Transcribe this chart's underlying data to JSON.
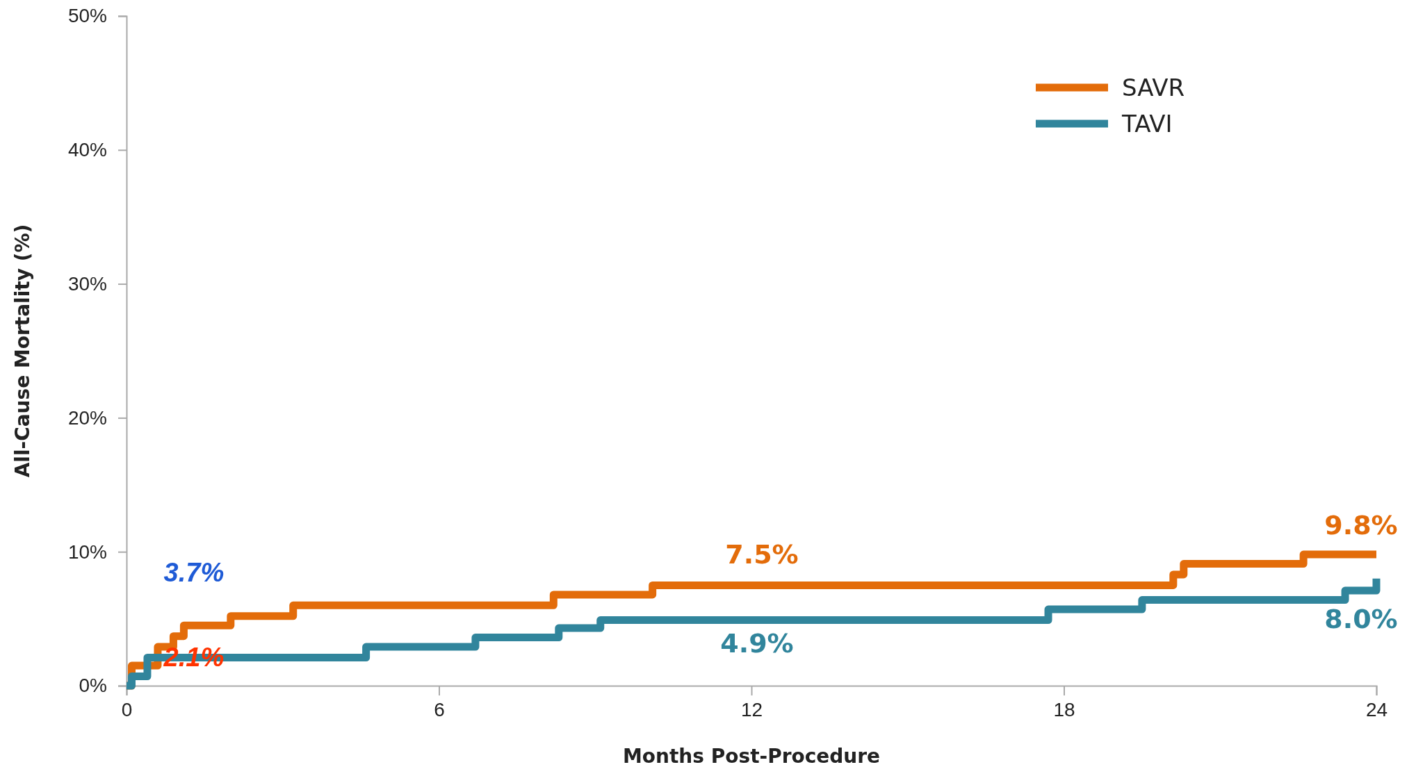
{
  "chart_data": {
    "type": "step",
    "xlabel": "Months Post-Procedure",
    "ylabel": "All-Cause Mortality (%)",
    "xlim": [
      0,
      24
    ],
    "xticks": [
      0,
      6,
      12,
      18,
      24
    ],
    "ylim": [
      0,
      50
    ],
    "yticks": [
      {
        "value": 0,
        "label": "0%"
      },
      {
        "value": 10,
        "label": "10%"
      },
      {
        "value": 20,
        "label": "20%"
      },
      {
        "value": 30,
        "label": "30%"
      },
      {
        "value": 40,
        "label": "40%"
      },
      {
        "value": 50,
        "label": "50%"
      }
    ],
    "grid": false,
    "legend": "top right",
    "marker": "none",
    "line_style": "solid",
    "series": [
      {
        "name": "SAVR",
        "color": "#e36c0a",
        "x": [
          0,
          0.1,
          0.6,
          0.9,
          1.1,
          2.0,
          3.2,
          8.2,
          10.1,
          20.1,
          20.3,
          22.6,
          24
        ],
        "values": [
          0,
          1.5,
          2.9,
          3.7,
          4.5,
          5.2,
          6.0,
          6.8,
          7.5,
          8.3,
          9.1,
          9.8,
          9.8
        ]
      },
      {
        "name": "TAVI",
        "color": "#31859c",
        "x": [
          0,
          0.1,
          0.4,
          4.6,
          6.7,
          8.3,
          9.1,
          17.7,
          19.5,
          23.4,
          24
        ],
        "values": [
          0,
          0.7,
          2.1,
          2.9,
          3.6,
          4.3,
          4.9,
          5.7,
          6.4,
          7.1,
          8.0
        ]
      }
    ],
    "annotations": [
      {
        "text": "3.7%",
        "x": 1,
        "y": 3.7
      },
      {
        "text": "2.1%",
        "x": 1,
        "y": 2.1
      },
      {
        "text": "7.5%",
        "x": 12,
        "y": 7.5
      },
      {
        "text": "4.9%",
        "x": 12,
        "y": 4.9
      },
      {
        "text": "9.8%",
        "x": 24,
        "y": 9.8
      },
      {
        "text": "8.0%",
        "x": 24,
        "y": 8.0
      }
    ]
  }
}
